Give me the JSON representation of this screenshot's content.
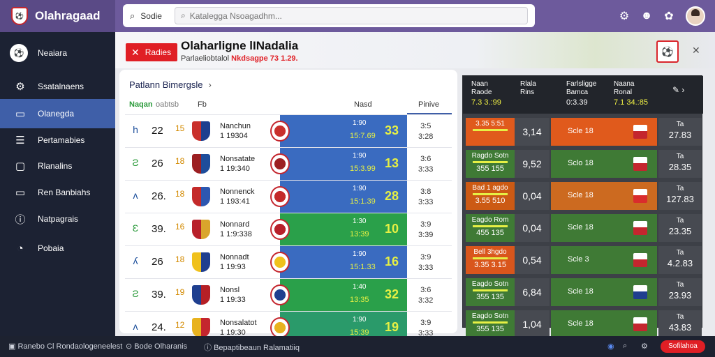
{
  "app": {
    "brand": "Olahragaad"
  },
  "search": {
    "label": "Sodie",
    "placeholder": "Katalegga Nsoagadhm...",
    "value": ""
  },
  "topbar": {
    "icons": [
      "gear-icon",
      "smiley-icon",
      "puzzle-icon"
    ]
  },
  "sidebar": {
    "items": [
      {
        "label": "Neaiara",
        "icon": "club-icon",
        "glyph": "⚽"
      },
      {
        "label": "Ssatalnaens",
        "icon": "gear-icon",
        "glyph": "⚙"
      },
      {
        "label": "Olanegda",
        "icon": "monitor-icon",
        "glyph": "▭"
      },
      {
        "label": "Pertamabies",
        "icon": "list-icon",
        "glyph": "☰"
      },
      {
        "label": "Rlanalins",
        "icon": "document-icon",
        "glyph": "▢"
      },
      {
        "label": "Ren Banbiahs",
        "icon": "chat-icon",
        "glyph": "▭"
      },
      {
        "label": "Natpagrais",
        "icon": "info-icon",
        "glyph": "ⓘ"
      },
      {
        "label": "Pobaia",
        "icon": "clock-icon",
        "glyph": "◔"
      }
    ]
  },
  "header": {
    "button_label": "Radies",
    "title": "Olaharligne lINadalia",
    "subtitle_a": "Parlaeliobtalol",
    "subtitle_b": "Nkdsagpe 73 1.29."
  },
  "table": {
    "title": "Patlann Bimergsle",
    "columns": {
      "c1": "Naqan",
      "c2": "oabtsb",
      "c3": "Fb",
      "c4": "Nasd",
      "c5": "Pinive"
    },
    "rows": [
      {
        "icon": "h",
        "pos": "22",
        "mini": "15",
        "name1": "Nanchun",
        "name2": "1 19304",
        "bar_top": "1:90",
        "bar_sub": "15:7.69",
        "score": "33",
        "fx1": "3:5",
        "fx2": "3:28",
        "crest": "#c9302c",
        "crest2": "#1d3f8f",
        "bar_color": "#3a6bc0"
      },
      {
        "icon": "Ƨ",
        "pos": "26",
        "mini": "18",
        "name1": "Nonsatate",
        "name2": "1 19:340",
        "bar_top": "1:90",
        "bar_sub": "15:3.99",
        "score": "13",
        "fx1": "3:6",
        "fx2": "3:33",
        "crest": "#9c1f22",
        "crest2": "#1e4d9b",
        "bar_color": "#3a6bc0"
      },
      {
        "icon": "ʌ",
        "pos": "26.",
        "mini": "18",
        "name1": "Nonnenck",
        "name2": "1 193:41",
        "bar_top": "1:90",
        "bar_sub": "15:1.39",
        "score": "28",
        "fx1": "3:8",
        "fx2": "3:33",
        "crest": "#c42a2a",
        "crest2": "#2d57b0",
        "bar_color": "#3a6bc0"
      },
      {
        "icon": "Ɛ",
        "pos": "39.",
        "mini": "16",
        "name1": "Nonnard",
        "name2": "1 1:9:338",
        "bar_top": "1:30",
        "bar_sub": "13:39",
        "score": "10",
        "fx1": "3:9",
        "fx2": "3:39",
        "crest": "#b8202a",
        "crest2": "#d9a52c",
        "bar_color": "#2aa04a"
      },
      {
        "icon": "ʎ",
        "pos": "26",
        "mini": "18",
        "name1": "Nonnadt",
        "name2": "1 19:93",
        "bar_top": "1:90",
        "bar_sub": "15:1.33",
        "score": "16",
        "fx1": "3:9",
        "fx2": "3:33",
        "crest": "#f0c11c",
        "crest2": "#1f3f8f",
        "bar_color": "#3a6bc0"
      },
      {
        "icon": "Ƨ",
        "pos": "39.",
        "mini": "19",
        "name1": "Nonsl",
        "name2": "1 19:33",
        "bar_top": "1:40",
        "bar_sub": "13:35",
        "score": "32",
        "fx1": "3:6",
        "fx2": "3:32",
        "crest": "#1f3f8f",
        "crest2": "#b52026",
        "bar_color": "#2aa04a"
      },
      {
        "icon": "ʌ",
        "pos": "24.",
        "mini": "12",
        "name1": "Nonsalatot",
        "name2": "1 19:30",
        "bar_top": "1:90",
        "bar_sub": "15:39",
        "score": "19",
        "fx1": "3:9",
        "fx2": "3:33",
        "crest": "#e8b21e",
        "crest2": "#c4262e",
        "bar_color": "#2a9a6a"
      }
    ]
  },
  "odds": {
    "heads": [
      {
        "l1": "Naan",
        "l2": "Raode",
        "v": "7.3 3.:99"
      },
      {
        "l1": "Rlala",
        "l2": "Rins",
        "v": ""
      },
      {
        "l1": "Farlsligge",
        "l2": "Bamca",
        "v": "0:3.39"
      },
      {
        "l1": "Naana",
        "l2": "Ronal",
        "v": "7.1 34.:85"
      }
    ],
    "rows": [
      {
        "c1a": "3.35 5:51",
        "c1b": "",
        "c2": "3,14",
        "c3": "Scle 18",
        "c4a": "Ta",
        "c4b": "27.83",
        "bg": "#e05a1c",
        "c1bg": "#e05a1c",
        "flag": "#c4262e"
      },
      {
        "c1a": "Ragdo Sotn",
        "c1b": "355 155",
        "c2": "9,52",
        "c3": "Sclo 18",
        "c4a": "Ta",
        "c4b": "28.35",
        "bg": "#3f7a35",
        "c1bg": "#3f7a35",
        "flag": "#c4262e"
      },
      {
        "c1a": "Bad 1 agdo",
        "c1b": "3.55 510",
        "c2": "0,04",
        "c3": "Scle 18",
        "c4a": "Ta",
        "c4b": "127.83",
        "bg": "#cc6a20",
        "c1bg": "#cc5a14",
        "flag": "#d92c2c"
      },
      {
        "c1a": "Eagdo Rom",
        "c1b": "455 135",
        "c2": "0,04",
        "c3": "Scle 18",
        "c4a": "Ta",
        "c4b": "23.35",
        "bg": "#3f7a35",
        "c1bg": "#3f7a35",
        "flag": "#c4262e"
      },
      {
        "c1a": "Bell 3hgdo",
        "c1b": "3.35 3.15",
        "c2": "0,54",
        "c3": "Scle 3",
        "c4a": "Ta",
        "c4b": "4.2.83",
        "bg": "#3f7a35",
        "c1bg": "#d9561c",
        "flag": "#c4262e"
      },
      {
        "c1a": "Eagdo Sotn",
        "c1b": "355 135",
        "c2": "6,84",
        "c3": "Scle 18",
        "c4a": "Ta",
        "c4b": "23.93",
        "bg": "#3f7a35",
        "c1bg": "#3f7a35",
        "flag": "#1f3f8f"
      },
      {
        "c1a": "Eagdo Sotn",
        "c1b": "355 135",
        "c2": "1,04",
        "c3": "Scle 18",
        "c4a": "Ta",
        "c4b": "43.83",
        "bg": "#3f7a35",
        "c1bg": "#3f7a35",
        "flag": "#c4262e"
      }
    ]
  },
  "footer": {
    "left": "Ranebo Cl Rondaologeneelest",
    "mid1": "Bode Olharanis",
    "mid2": "Bepaptibeaun Ralamatiiq",
    "btn": "Sofilahoa"
  }
}
